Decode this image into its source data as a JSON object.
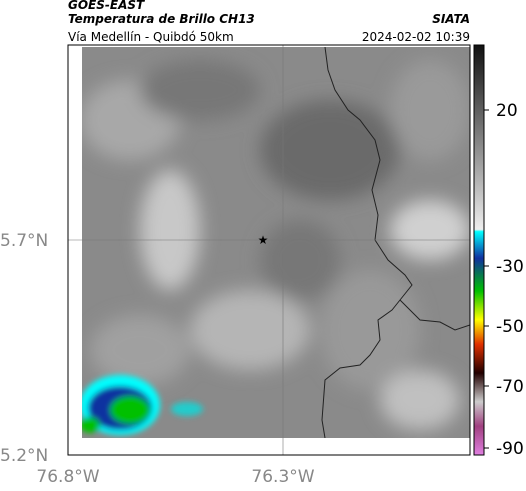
{
  "header": {
    "source": "GOES-EAST",
    "title": "Temperatura de Brillo CH13",
    "subtitle": "Vía Medellín - Quibdó 50km",
    "agency": "SIATA",
    "timestamp": "2024-02-02 10:39"
  },
  "map": {
    "lat_labels": [
      "5.7°N",
      "5.2°N"
    ],
    "lon_labels": [
      "76.8°W",
      "76.3°W"
    ]
  },
  "colorbar": {
    "tick_labels": [
      "20",
      "-30",
      "-50",
      "-70",
      "-90"
    ]
  }
}
